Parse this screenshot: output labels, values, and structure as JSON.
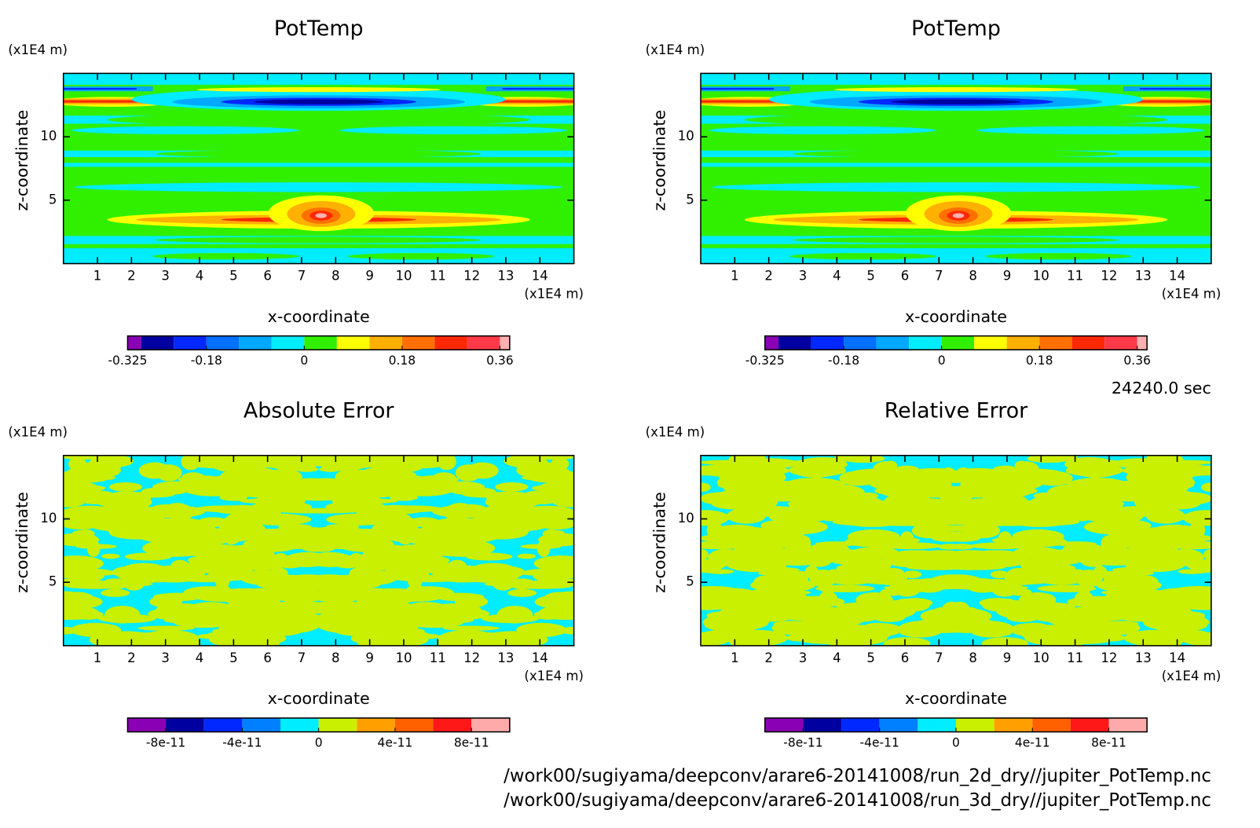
{
  "panels": [
    {
      "title": "PotTemp",
      "x_label": "x-coordinate",
      "y_label": "z-coordinate",
      "x_unit": "(x1E4 m)",
      "y_unit": "(x1E4 m)",
      "xlim": [
        0,
        15
      ],
      "ylim": [
        0,
        15
      ],
      "xticks": [
        1,
        2,
        3,
        4,
        5,
        6,
        7,
        8,
        9,
        10,
        11,
        12,
        13,
        14
      ],
      "yticks": [
        5,
        10
      ],
      "field": "pottemp",
      "colorbar": {
        "lim": [
          -0.325,
          0.378
        ],
        "levels": [
          -0.325,
          -0.3,
          -0.24,
          -0.18,
          -0.12,
          -0.06,
          0,
          0.06,
          0.12,
          0.18,
          0.24,
          0.3,
          0.36,
          0.378
        ],
        "colors": [
          "#8a00b4",
          "#0000a0",
          "#0028ff",
          "#0070ff",
          "#00a8ff",
          "#00ecff",
          "#30f000",
          "#ffff00",
          "#ffb000",
          "#ff7000",
          "#ff2800",
          "#ff3a48",
          "#ffb0b0"
        ],
        "ticks": [
          -0.325,
          -0.18,
          0,
          0.18,
          0.36
        ]
      }
    },
    {
      "title": "PotTemp",
      "x_label": "x-coordinate",
      "y_label": "z-coordinate",
      "x_unit": "(x1E4 m)",
      "y_unit": "(x1E4 m)",
      "xlim": [
        0,
        15
      ],
      "ylim": [
        0,
        15
      ],
      "xticks": [
        1,
        2,
        3,
        4,
        5,
        6,
        7,
        8,
        9,
        10,
        11,
        12,
        13,
        14
      ],
      "yticks": [
        5,
        10
      ],
      "field": "pottemp",
      "colorbar": {
        "lim": [
          -0.325,
          0.378
        ],
        "levels": [
          -0.325,
          -0.3,
          -0.24,
          -0.18,
          -0.12,
          -0.06,
          0,
          0.06,
          0.12,
          0.18,
          0.24,
          0.3,
          0.36,
          0.378
        ],
        "colors": [
          "#8a00b4",
          "#0000a0",
          "#0028ff",
          "#0070ff",
          "#00a8ff",
          "#00ecff",
          "#30f000",
          "#ffff00",
          "#ffb000",
          "#ff7000",
          "#ff2800",
          "#ff3a48",
          "#ffb0b0"
        ],
        "ticks": [
          -0.325,
          -0.18,
          0,
          0.18,
          0.36
        ]
      }
    },
    {
      "title": "Absolute Error",
      "x_label": "x-coordinate",
      "y_label": "z-coordinate",
      "x_unit": "(x1E4 m)",
      "y_unit": "(x1E4 m)",
      "xlim": [
        0,
        15
      ],
      "ylim": [
        0,
        15
      ],
      "xticks": [
        1,
        2,
        3,
        4,
        5,
        6,
        7,
        8,
        9,
        10,
        11,
        12,
        13,
        14
      ],
      "yticks": [
        5,
        10
      ],
      "field": "error",
      "colorbar": {
        "lim": [
          -1e-10,
          1e-10
        ],
        "levels": [
          -1e-10,
          -8e-11,
          -6e-11,
          -4e-11,
          -2e-11,
          0,
          2e-11,
          4e-11,
          6e-11,
          8e-11,
          1e-10
        ],
        "colors": [
          "#8a00b4",
          "#0000a0",
          "#0028ff",
          "#0080ff",
          "#00ecff",
          "#c8f000",
          "#ffa000",
          "#ff6000",
          "#ff1818",
          "#ffaaaa"
        ],
        "ticks": [
          -8e-11,
          -4e-11,
          0,
          4e-11,
          8e-11
        ]
      }
    },
    {
      "title": "Relative Error",
      "x_label": "x-coordinate",
      "y_label": "z-coordinate",
      "x_unit": "(x1E4 m)",
      "y_unit": "(x1E4 m)",
      "xlim": [
        0,
        15
      ],
      "ylim": [
        0,
        15
      ],
      "xticks": [
        1,
        2,
        3,
        4,
        5,
        6,
        7,
        8,
        9,
        10,
        11,
        12,
        13,
        14
      ],
      "yticks": [
        5,
        10
      ],
      "field": "error",
      "colorbar": {
        "lim": [
          -1e-10,
          1e-10
        ],
        "levels": [
          -1e-10,
          -8e-11,
          -6e-11,
          -4e-11,
          -2e-11,
          0,
          2e-11,
          4e-11,
          6e-11,
          8e-11,
          1e-10
        ],
        "colors": [
          "#8a00b4",
          "#0000a0",
          "#0028ff",
          "#0080ff",
          "#00ecff",
          "#c8f000",
          "#ffa000",
          "#ff6000",
          "#ff1818",
          "#ffaaaa"
        ],
        "ticks": [
          -8e-11,
          -4e-11,
          0,
          4e-11,
          8e-11
        ]
      }
    }
  ],
  "time": "24240.0 sec",
  "files": [
    "/work00/sugiyama/deepconv/arare6-20141008/run_2d_dry//jupiter_PotTemp.nc",
    "/work00/sugiyama/deepconv/arare6-20141008/run_3d_dry//jupiter_PotTemp.nc"
  ]
}
